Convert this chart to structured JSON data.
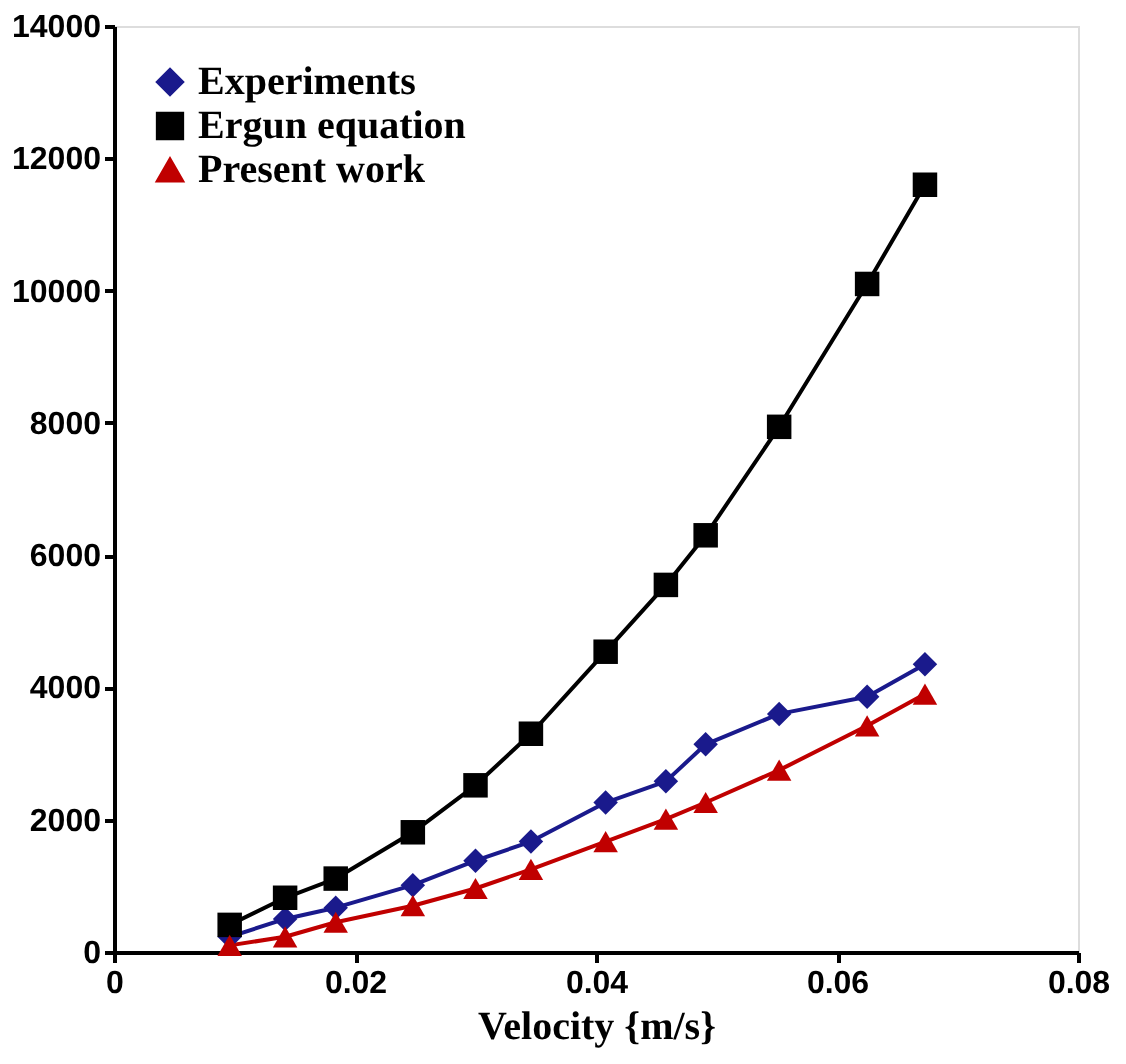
{
  "chart_data": {
    "type": "line",
    "xlabel": "Velocity {m/s}",
    "xlim": [
      0,
      0.08
    ],
    "xticks": [
      0,
      0.02,
      0.04,
      0.06,
      0.08
    ],
    "ylim": [
      0,
      14000
    ],
    "yticks": [
      0,
      2000,
      4000,
      6000,
      8000,
      10000,
      12000,
      14000
    ],
    "x": [
      0.0096,
      0.0142,
      0.0184,
      0.0248,
      0.03,
      0.0346,
      0.0408,
      0.0458,
      0.0491,
      0.0552,
      0.0625,
      0.0673
    ],
    "series": [
      {
        "name": "Experiments",
        "color": "#1a1a8c",
        "marker": "diamond",
        "values": [
          230,
          500,
          670,
          1010,
          1380,
          1670,
          2260,
          2580,
          3140,
          3600,
          3860,
          4350
        ]
      },
      {
        "name": "Ergun equation",
        "color": "#000000",
        "marker": "square",
        "values": [
          410,
          820,
          1110,
          1810,
          2520,
          3300,
          4540,
          5550,
          6300,
          7940,
          10100,
          11600
        ]
      },
      {
        "name": "Present work",
        "color": "#c00000",
        "marker": "triangle",
        "values": [
          100,
          230,
          450,
          700,
          960,
          1250,
          1670,
          2010,
          2260,
          2750,
          3420,
          3900
        ]
      }
    ],
    "grid": false,
    "legend": "top left",
    "line_style": "solid"
  }
}
